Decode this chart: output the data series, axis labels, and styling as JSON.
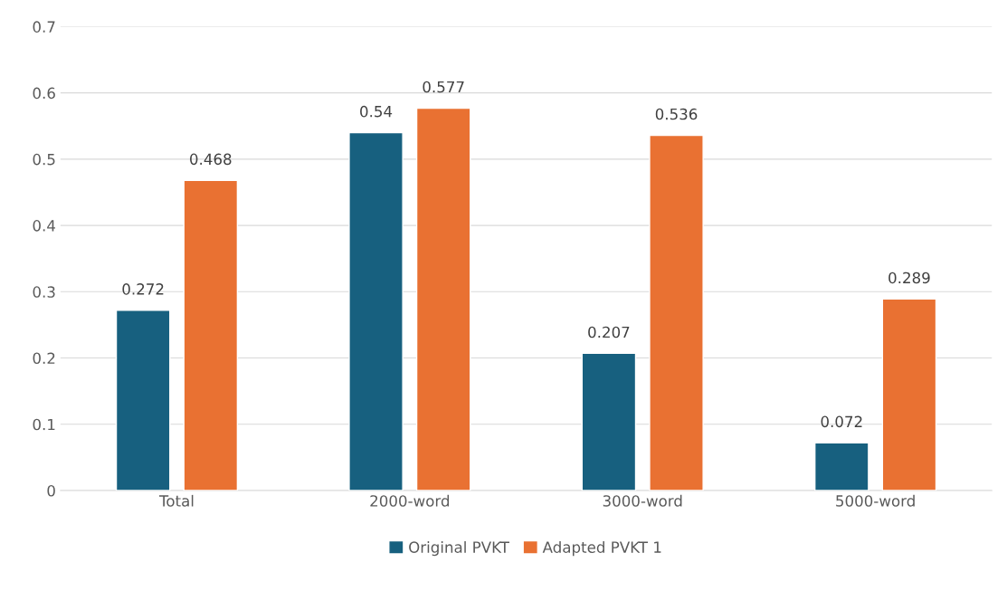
{
  "chart_data": {
    "type": "bar",
    "categories": [
      "Total",
      "2000-word",
      "3000-word",
      "5000-word"
    ],
    "series": [
      {
        "name": "Original PVKT",
        "color": "#17607f",
        "values": [
          0.272,
          0.54,
          0.207,
          0.072
        ]
      },
      {
        "name": "Adapted PVKT 1",
        "color": "#e97132",
        "values": [
          0.468,
          0.577,
          0.536,
          0.289
        ]
      }
    ],
    "ylim": [
      0,
      0.7
    ],
    "yticks": [
      0,
      0.1,
      0.2,
      0.3,
      0.4,
      0.5,
      0.6,
      0.7
    ],
    "grid": "y",
    "legend": "bottom",
    "data_labels": true
  }
}
